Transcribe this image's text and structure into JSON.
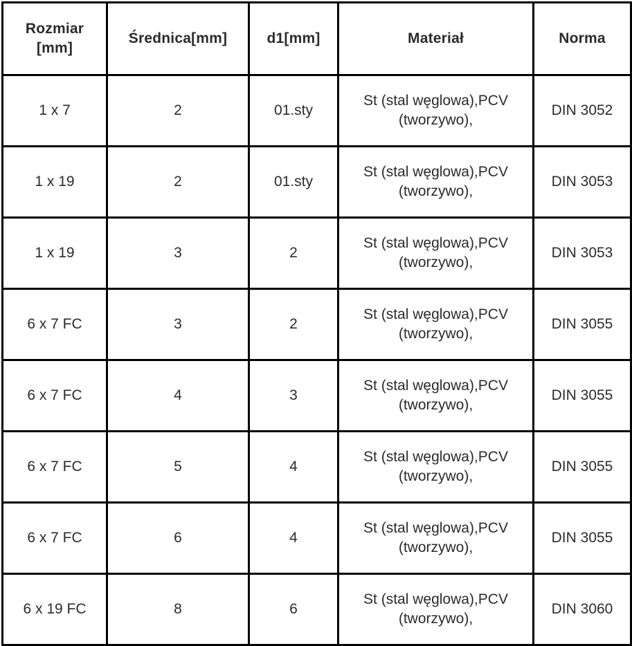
{
  "table": {
    "headers": {
      "rozmiar": "Rozmiar [mm]",
      "srednica": "Średnica[mm]",
      "d1": "d1[mm]",
      "material": "Materiał",
      "norma": "Norma"
    },
    "rows": [
      [
        "1 x 7",
        "2",
        "01.sty",
        "St (stal węglowa),PCV (tworzywo),",
        "DIN 3052"
      ],
      [
        "1 x 19",
        "2",
        "01.sty",
        "St (stal węglowa),PCV (tworzywo),",
        "DIN 3053"
      ],
      [
        "1 x 19",
        "3",
        "2",
        "St (stal węglowa),PCV (tworzywo),",
        "DIN 3053"
      ],
      [
        "6 x 7 FC",
        "3",
        "2",
        "St (stal węglowa),PCV (tworzywo),",
        "DIN 3055"
      ],
      [
        "6 x 7 FC",
        "4",
        "3",
        "St (stal węglowa),PCV (tworzywo),",
        "DIN 3055"
      ],
      [
        "6 x 7 FC",
        "5",
        "4",
        "St (stal węglowa),PCV (tworzywo),",
        "DIN 3055"
      ],
      [
        "6 x 7 FC",
        "6",
        "4",
        "St (stal węglowa),PCV (tworzywo),",
        "DIN 3055"
      ],
      [
        "6 x 19 FC",
        "8",
        "6",
        "St (stal węglowa),PCV (tworzywo),",
        "DIN 3060"
      ]
    ],
    "colors": {
      "border": "#000000",
      "text": "#2b2b2b",
      "background": "#ffffff"
    }
  }
}
